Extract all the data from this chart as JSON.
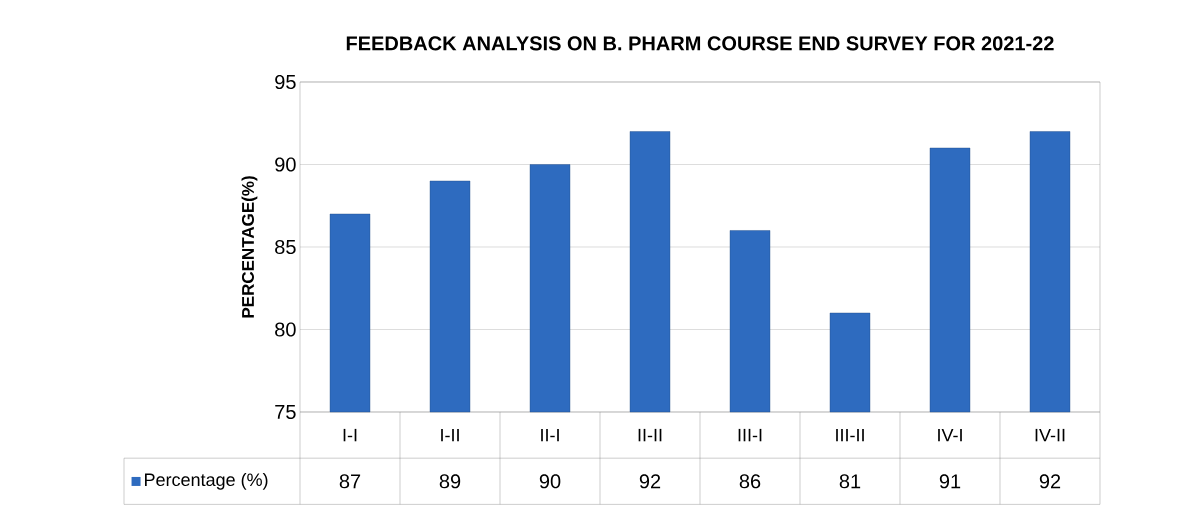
{
  "chart_data": {
    "type": "bar",
    "title": "FEEDBACK ANALYSIS ON B. PHARM COURSE END SURVEY FOR 2021-22",
    "ylabel": "PERCENTAGE(%)",
    "categories": [
      "I-I",
      "I-II",
      "II-I",
      "II-II",
      "III-I",
      "III-II",
      "IV-I",
      "IV-II"
    ],
    "series": [
      {
        "name": "Percentage (%)",
        "color": "#2e6bbf",
        "values": [
          87,
          89,
          90,
          92,
          86,
          81,
          91,
          92
        ]
      }
    ],
    "ylim": [
      75,
      95
    ],
    "yticks": [
      75,
      80,
      85,
      90,
      95
    ],
    "grid": "y",
    "data_labels": true,
    "legend": "bottom"
  }
}
